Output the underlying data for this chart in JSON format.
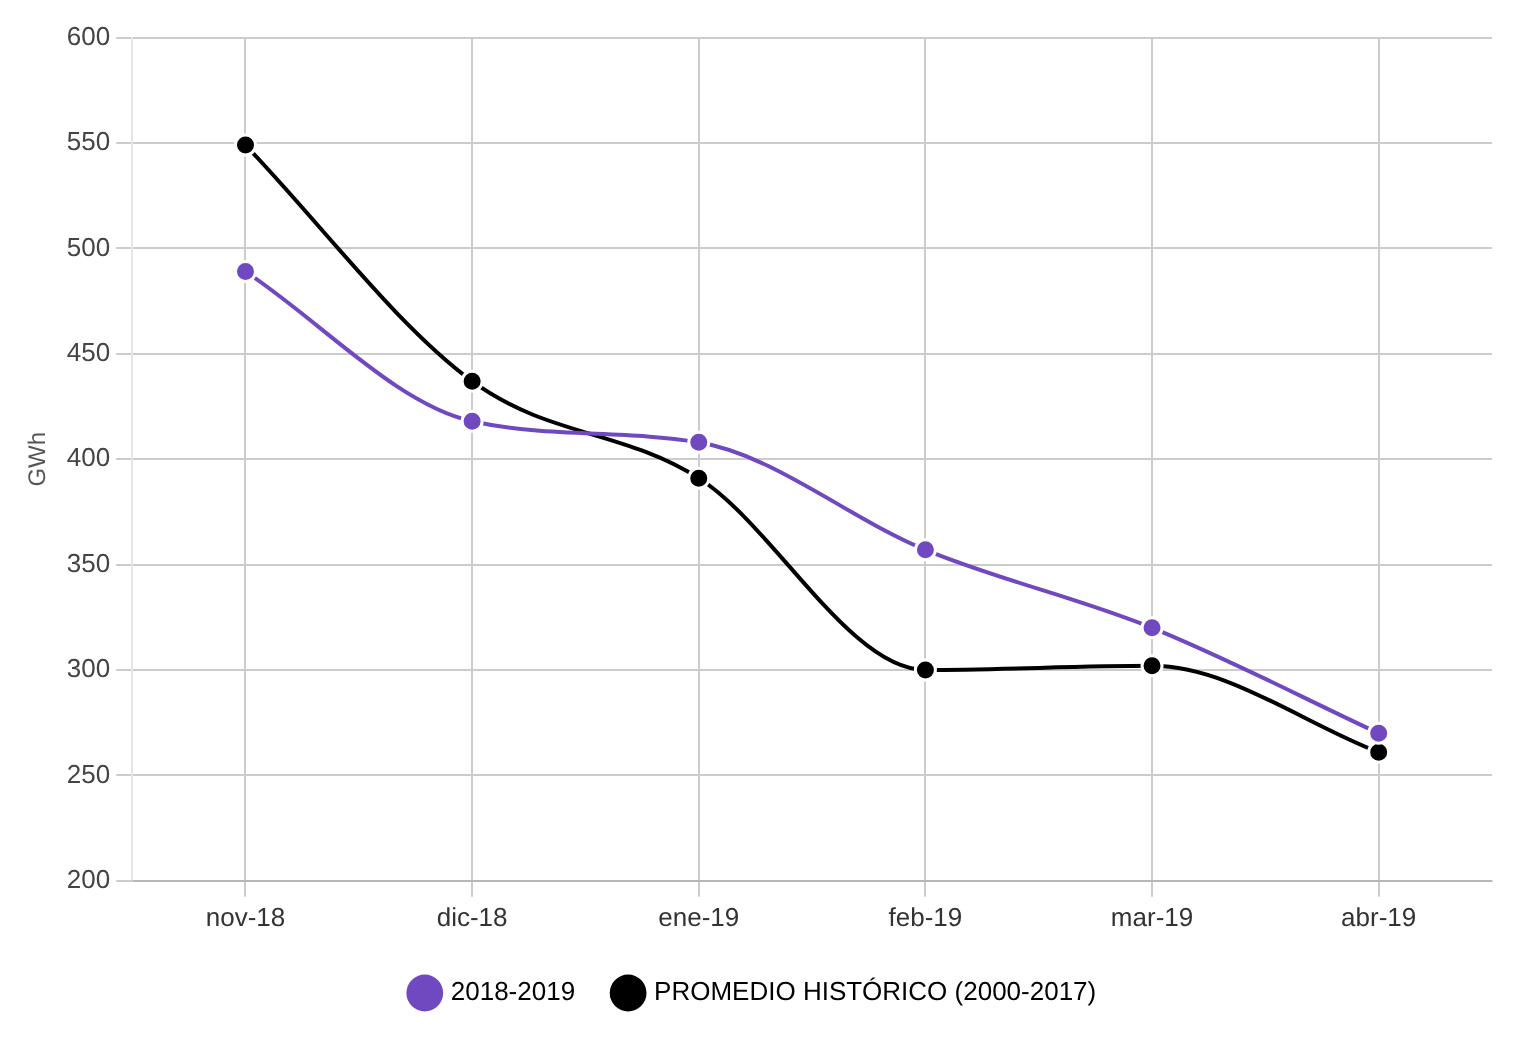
{
  "chart_data": {
    "type": "line",
    "ylabel": "GWh",
    "categories": [
      "nov-18",
      "dic-18",
      "ene-19",
      "feb-19",
      "mar-19",
      "abr-19"
    ],
    "series": [
      {
        "name": "2018-2019",
        "color": "#7048c0",
        "values": [
          489,
          418,
          408,
          357,
          320,
          270
        ]
      },
      {
        "name": "PROMEDIO HISTÓRICO (2000-2017)",
        "color": "#000000",
        "values": [
          549,
          437,
          391,
          300,
          302,
          261
        ]
      }
    ],
    "ylim": [
      200,
      600
    ],
    "yticks": [
      200,
      250,
      300,
      350,
      400,
      450,
      500,
      550,
      600
    ],
    "grid": true,
    "legend": "bottom",
    "marker": "circle",
    "line_style": "solid"
  }
}
